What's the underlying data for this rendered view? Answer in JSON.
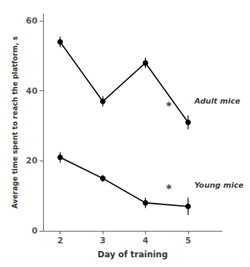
{
  "chart_data": {
    "type": "line",
    "x": [
      2,
      3,
      4,
      5
    ],
    "series": [
      {
        "values": [
          54.0,
          37.0,
          48.0,
          31.0
        ],
        "errors": [
          1.5,
          1.5,
          1.5,
          2.0
        ],
        "color": "#000000",
        "marker": "circle"
      },
      {
        "values": [
          21.0,
          15.0,
          8.0,
          7.0
        ],
        "errors": [
          1.5,
          1.0,
          1.5,
          2.5
        ],
        "color": "#000000",
        "marker": "circle"
      }
    ],
    "annotations": [
      {
        "text": "*",
        "x": 4.55,
        "y": 34
      },
      {
        "text": "*",
        "x": 4.55,
        "y": 10.5
      },
      {
        "text": "Adult mice",
        "x": 5.15,
        "y": 37
      },
      {
        "text": "Young mice",
        "x": 5.15,
        "y": 13
      }
    ],
    "xlabel": "Day of training",
    "ylabel": "Average time spent to reach the platform, s",
    "xlim": [
      1.6,
      5.8
    ],
    "xticks": [
      2,
      3,
      4,
      5
    ],
    "ylim": [
      0,
      62
    ],
    "yticks": [
      0,
      20,
      40,
      60
    ],
    "grid": false
  }
}
